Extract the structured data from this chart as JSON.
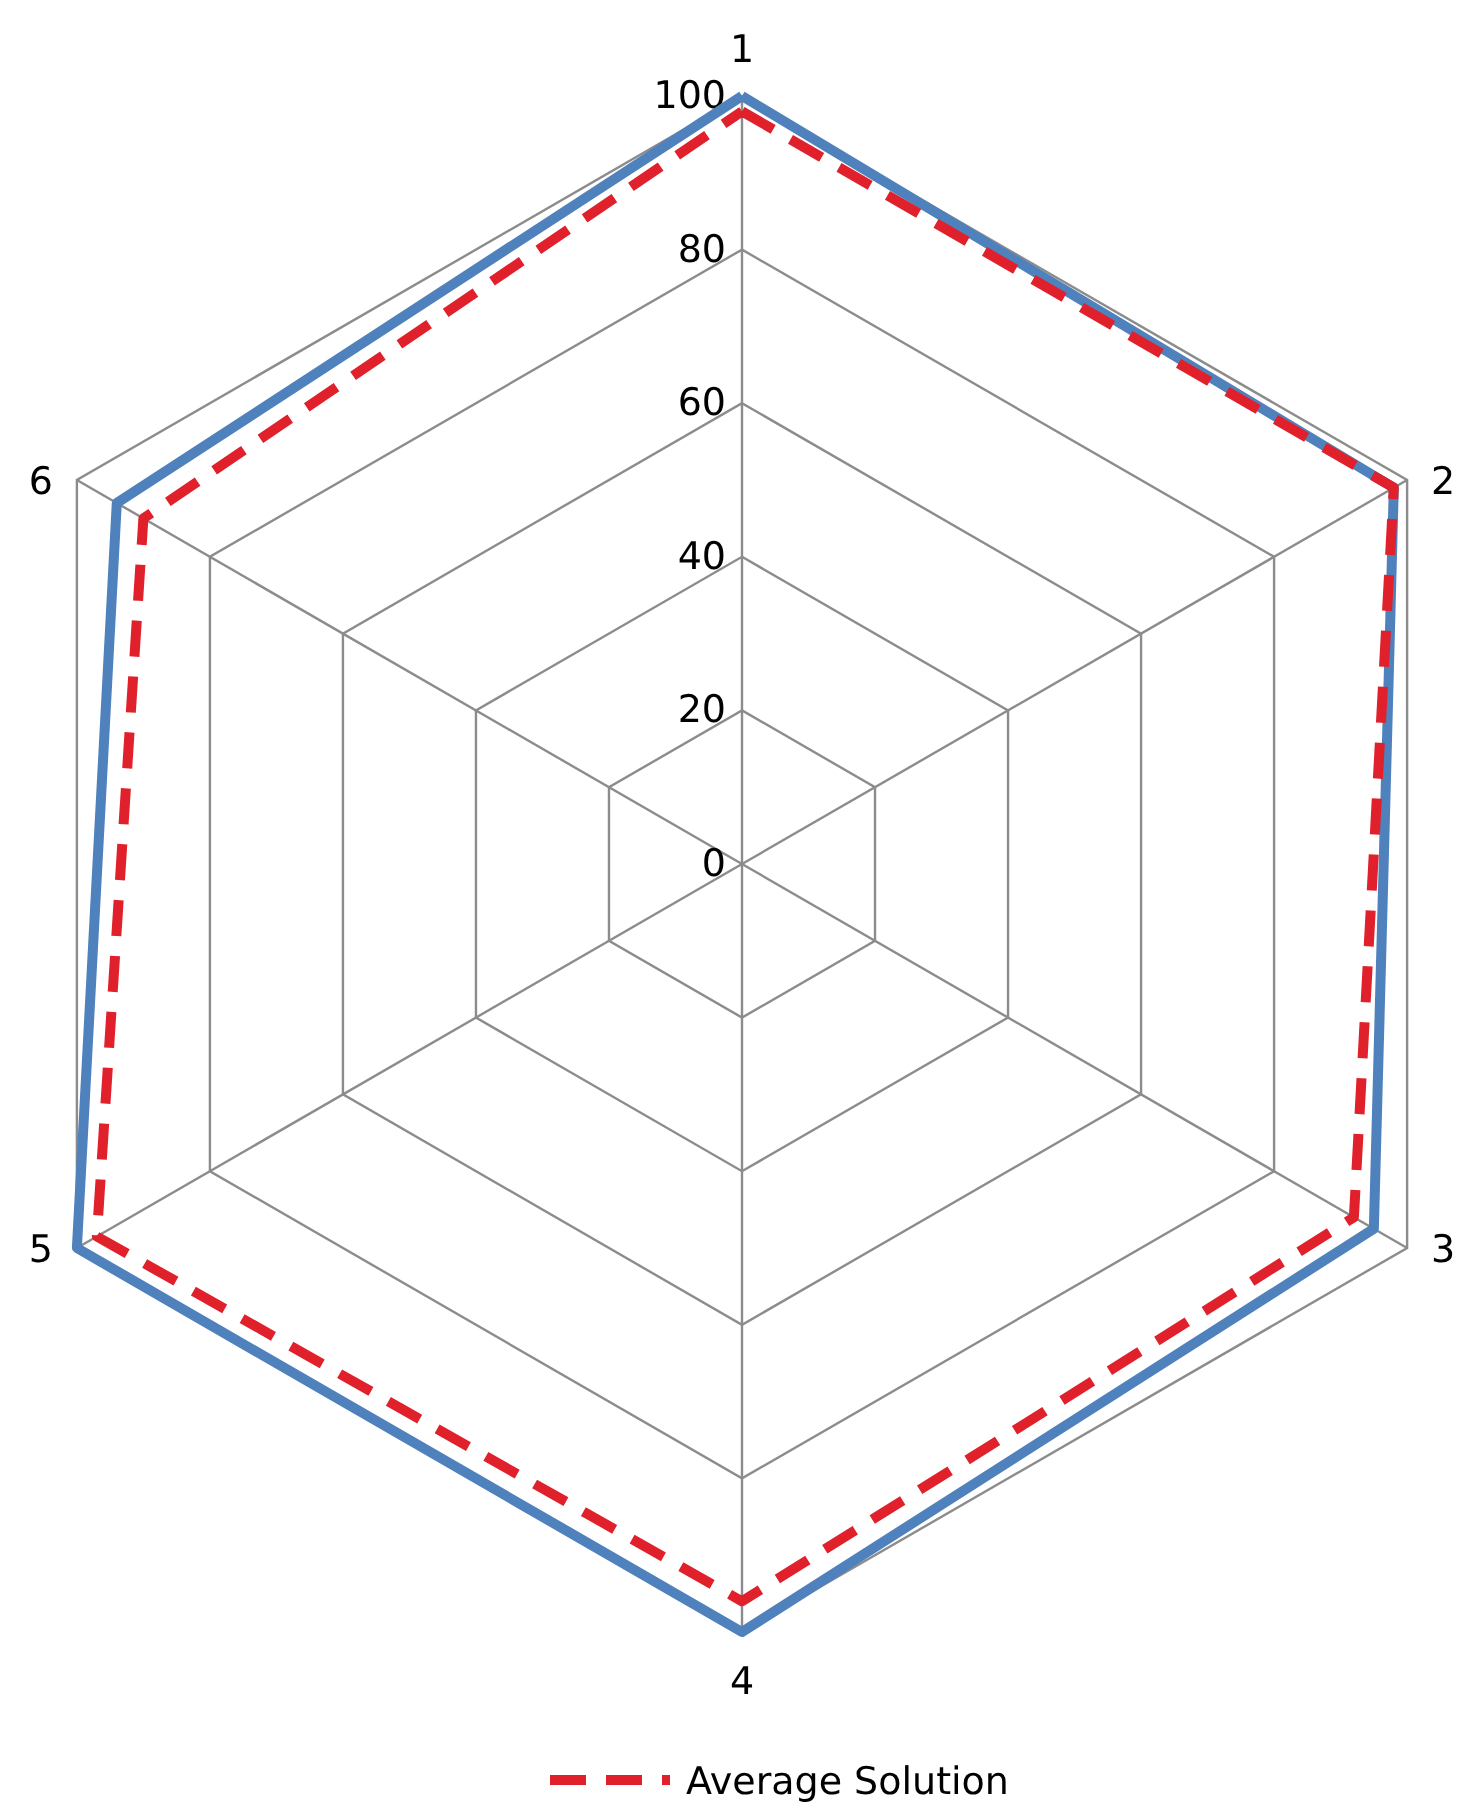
{
  "chart_data": {
    "type": "radar",
    "categories": [
      "1",
      "2",
      "3",
      "4",
      "5",
      "6"
    ],
    "ylim": [
      0,
      100
    ],
    "yticks": [
      0,
      20,
      40,
      60,
      80,
      100
    ],
    "grid": true,
    "legend": "bottom",
    "marker": "none",
    "series": [
      {
        "color": "#4f81bd",
        "line_style": "solid",
        "values": [
          100,
          98,
          95,
          100,
          100,
          94
        ]
      },
      {
        "name": "Average Solution",
        "color": "#e0202a",
        "line_style": "dashed",
        "values": [
          98,
          98,
          92,
          96,
          97,
          90
        ]
      }
    ]
  }
}
